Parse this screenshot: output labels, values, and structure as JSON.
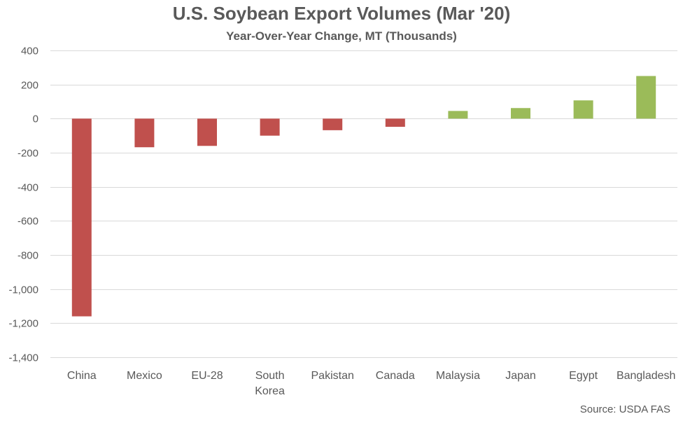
{
  "chart_data": {
    "type": "bar",
    "title": "U.S. Soybean Export Volumes (Mar '20)",
    "subtitle": "Year-Over-Year Change, MT (Thousands)",
    "source": "Source: USDA FAS",
    "categories": [
      "China",
      "Mexico",
      "EU-28",
      "South Korea",
      "Pakistan",
      "Canada",
      "Malaysia",
      "Japan",
      "Egypt",
      "Bangladesh"
    ],
    "category_lines": [
      [
        "China"
      ],
      [
        "Mexico"
      ],
      [
        "EU-28"
      ],
      [
        "South",
        "Korea"
      ],
      [
        "Pakistan"
      ],
      [
        "Canada"
      ],
      [
        "Malaysia"
      ],
      [
        "Japan"
      ],
      [
        "Egypt"
      ],
      [
        "Bangladesh"
      ]
    ],
    "values": [
      -1160,
      -168,
      -160,
      -100,
      -68,
      -48,
      45,
      62,
      107,
      250
    ],
    "ylim": [
      -1400,
      400
    ],
    "yticks": [
      400,
      200,
      0,
      -200,
      -400,
      -600,
      -800,
      -1000,
      -1200,
      -1400
    ],
    "ytick_labels": [
      "400",
      "200",
      "0",
      "-200",
      "-400",
      "-600",
      "-800",
      "-1,000",
      "-1,200",
      "-1,400"
    ],
    "grid": true,
    "colors": {
      "negative": "#c0504d",
      "positive": "#9bbb59",
      "grid": "#d9d9d9"
    }
  }
}
